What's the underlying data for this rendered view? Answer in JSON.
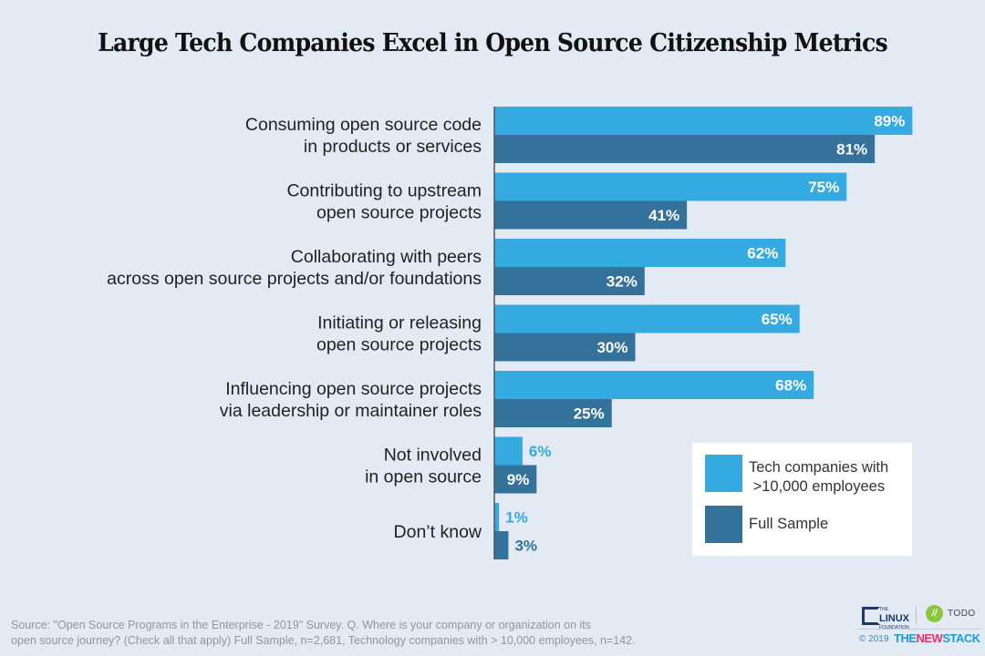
{
  "title": "Large Tech Companies Excel in Open Source Citizenship Metrics",
  "chart_data": {
    "type": "bar",
    "orientation": "horizontal",
    "title": "Large Tech Companies Excel in Open Source Citizenship Metrics",
    "xlabel": "",
    "ylabel": "",
    "xlim": [
      0,
      100
    ],
    "grid": false,
    "legend_position": "bottom-right",
    "categories": [
      [
        "Consuming open source code",
        "in products or services"
      ],
      [
        "Contributing to upstream",
        "open source projects"
      ],
      [
        "Collaborating with peers",
        "across open source projects and/or foundations"
      ],
      [
        "Initiating or releasing",
        "open source projects"
      ],
      [
        "Influencing open source projects",
        "via leadership or maintainer roles"
      ],
      [
        "Not involved",
        "in open source"
      ],
      [
        "Don’t know"
      ]
    ],
    "series": [
      {
        "name": "Tech companies with >10,000 employees",
        "color": "#35aae0",
        "values": [
          89,
          75,
          62,
          65,
          68,
          6,
          1
        ]
      },
      {
        "name": "Full Sample",
        "color": "#34729b",
        "values": [
          81,
          41,
          32,
          30,
          25,
          9,
          3
        ]
      }
    ],
    "value_suffix": "%"
  },
  "legend": {
    "items": [
      {
        "lines": [
          "Tech companies with",
          " >10,000 employees"
        ],
        "color": "#35aae0"
      },
      {
        "lines": [
          "Full Sample"
        ],
        "color": "#34729b"
      }
    ]
  },
  "source": {
    "line1": "Source: \"Open Source Programs in the Enterprise - 2019\" Survey. Q. Where is your company or organization on its",
    "line2": "open source journey? (Check all that apply) Full Sample, n=2,681, Technology companies with > 10,000 employees, n=142."
  },
  "logos": {
    "linux_the": "THE",
    "linux_name": "LINUX",
    "linux_foundation": "FOUNDATION",
    "todo_mark": "//",
    "todo": "TODO",
    "copyright": "© 2019",
    "tns_the": "THE",
    "tns_new": "NEW",
    "tns_stack": "STACK"
  }
}
